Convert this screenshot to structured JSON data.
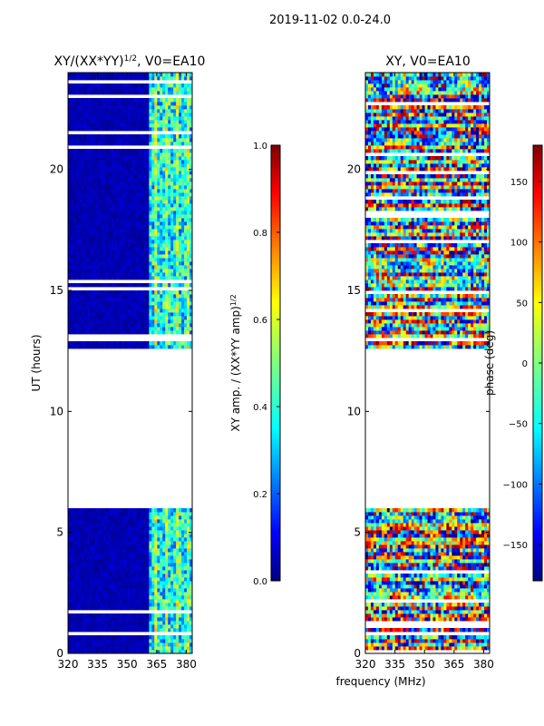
{
  "suptitle": "2019-11-02 0.0-24.0",
  "chart_data": [
    {
      "type": "heatmap",
      "title": "XY/(XX*YY)",
      "title_sup": "1/2",
      "title_suffix": ", V0=EA10",
      "xlabel": "",
      "ylabel": "UT (hours)",
      "xlim": [
        320,
        383
      ],
      "ylim": [
        0,
        24
      ],
      "xticks": [
        320,
        335,
        350,
        365,
        380
      ],
      "yticks": [
        0,
        5,
        10,
        15,
        20
      ],
      "data_gap_hours": [
        6.0,
        12.6
      ],
      "bright_band_mhz": [
        361,
        383
      ],
      "colorbar": {
        "label": "XY amp. / (XX*YY amp)",
        "label_sup": "1/2",
        "range": [
          0.0,
          1.0
        ],
        "ticks": [
          "0.0",
          "0.2",
          "0.4",
          "0.6",
          "0.8",
          "1.0"
        ]
      }
    },
    {
      "type": "heatmap",
      "title": "XY, V0=EA10",
      "xlabel": "frequency (MHz)",
      "ylabel": "",
      "xlim": [
        320,
        383
      ],
      "ylim": [
        0,
        24
      ],
      "xticks": [
        320,
        335,
        350,
        365,
        380
      ],
      "yticks": [
        0,
        5,
        10,
        15,
        20
      ],
      "data_gap_hours": [
        6.0,
        12.6
      ],
      "colorbar": {
        "label": "phase (deg)",
        "range": [
          -180,
          180
        ],
        "ticks": [
          "−150",
          "−100",
          "−50",
          "0",
          "50",
          "100",
          "150"
        ]
      }
    }
  ],
  "colormap": "jet"
}
